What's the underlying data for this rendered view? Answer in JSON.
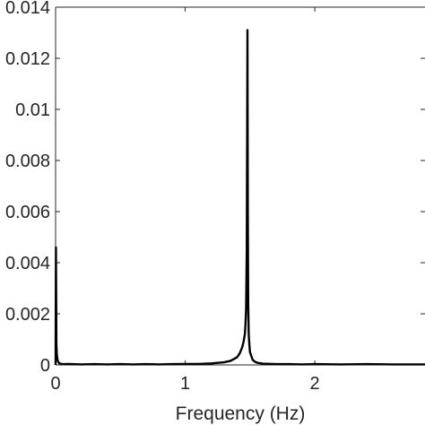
{
  "chart_data": {
    "type": "line",
    "title": "",
    "xlabel": "Frequency (Hz)",
    "ylabel": "",
    "xlim": [
      0,
      2.85
    ],
    "ylim": [
      0,
      0.014
    ],
    "x_ticks": [
      0,
      1,
      2
    ],
    "x_tick_labels": [
      "0",
      "1",
      "2"
    ],
    "y_ticks": [
      0,
      0.002,
      0.004,
      0.006,
      0.008,
      0.01,
      0.012,
      0.014
    ],
    "y_tick_labels": [
      "0",
      "0.002",
      "0.004",
      "0.006",
      "0.008",
      "0.01",
      "0.012",
      "0.014"
    ],
    "grid": false,
    "line_color": "#000000",
    "series": [
      {
        "x": [
          0,
          0.003,
          0.006,
          0.01,
          0.015,
          0.02,
          0.03,
          0.05,
          0.08,
          0.1,
          0.2,
          0.3,
          0.4,
          0.5,
          0.6,
          0.7,
          0.8,
          0.9,
          1.0,
          1.1,
          1.2,
          1.3,
          1.35,
          1.4,
          1.42,
          1.44,
          1.45,
          1.46,
          1.465,
          1.47,
          1.475,
          1.478,
          1.48,
          1.483,
          1.486,
          1.49,
          1.495,
          1.5,
          1.51,
          1.52,
          1.54,
          1.56,
          1.6,
          1.7,
          1.8,
          1.9,
          2.0,
          2.2,
          2.4,
          2.6,
          2.85
        ],
        "y": [
          0,
          0.0046,
          0.0008,
          0.0004,
          0.0002,
          0.00012,
          6e-05,
          4e-05,
          3e-05,
          4e-05,
          2e-05,
          3e-05,
          2e-05,
          3e-05,
          2e-05,
          3e-05,
          2e-05,
          3e-05,
          4e-05,
          4e-05,
          6e-05,
          0.0001,
          0.00016,
          0.0003,
          0.00045,
          0.0007,
          0.0009,
          0.0012,
          0.0016,
          0.0022,
          0.0045,
          0.0095,
          0.0131,
          0.006,
          0.0024,
          0.0012,
          0.0008,
          0.0005,
          0.00035,
          0.0002,
          0.00012,
          8e-05,
          5e-05,
          3e-05,
          3e-05,
          2e-05,
          3e-05,
          2e-05,
          3e-05,
          2e-05,
          2e-05
        ]
      }
    ]
  }
}
